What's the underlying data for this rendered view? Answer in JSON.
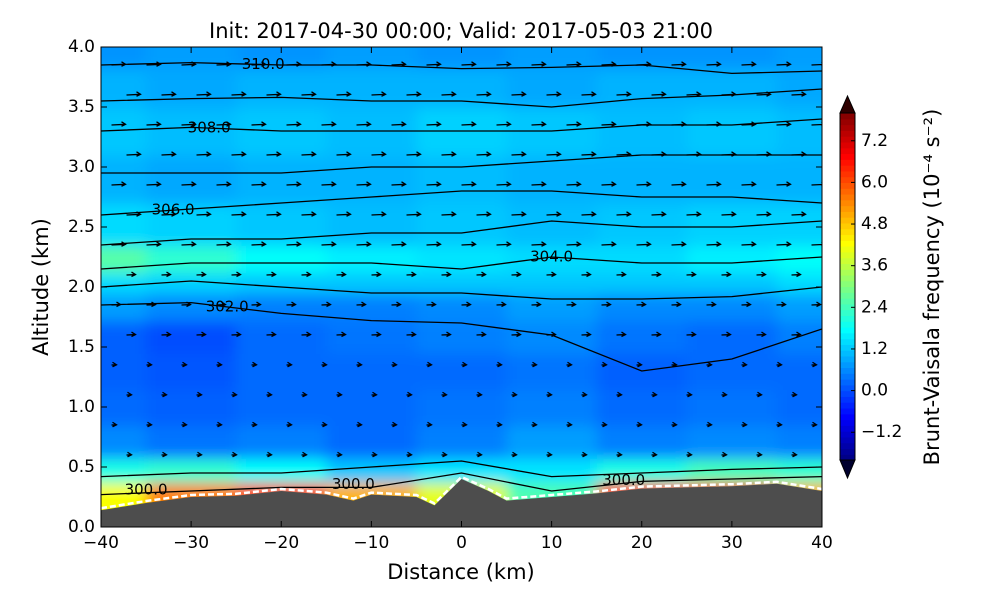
{
  "chart_data": {
    "type": "contourf",
    "title": "Init: 2017-04-30 00:00; Valid: 2017-05-03 21:00",
    "x_label": "Distance (km)",
    "y_label": "Altitude (km)",
    "colorbar_label": "Brunt-Vaisala frequency (10⁻⁴ s⁻²)",
    "colormap": "jet",
    "xlim": [
      -40,
      40
    ],
    "xticks": [
      {
        "value": -40,
        "label": "−40"
      },
      {
        "value": -30,
        "label": "−30"
      },
      {
        "value": -20,
        "label": "−20"
      },
      {
        "value": -10,
        "label": "−10"
      },
      0,
      10,
      20,
      30,
      40
    ],
    "ylim": [
      0,
      4
    ],
    "yticks": [
      {
        "value": 0,
        "label": "0.0"
      },
      0.5,
      {
        "value": 1,
        "label": "1.0"
      },
      1.5,
      {
        "value": 2,
        "label": "2.0"
      },
      2.5,
      {
        "value": 3,
        "label": "3.0"
      },
      3.5,
      {
        "value": 4,
        "label": "4.0"
      }
    ],
    "clim": [
      -2,
      8
    ],
    "cticks": [
      {
        "value": -1.2,
        "label": "−1.2"
      },
      {
        "value": 0,
        "label": "0.0"
      },
      1.2,
      2.4,
      3.6,
      4.8,
      {
        "value": 6,
        "label": "6.0"
      },
      7.2
    ],
    "field": {
      "x": [
        -40,
        -30,
        -20,
        -10,
        0,
        10,
        20,
        30,
        40
      ],
      "y": [
        0.3,
        0.45,
        0.7,
        1.0,
        1.3,
        1.6,
        1.85,
        2.05,
        2.2,
        2.5,
        2.9,
        3.3,
        3.7,
        3.95
      ],
      "values": [
        [
          4.2,
          5.5,
          6.0,
          5.0,
          4.0,
          2.5,
          6.2,
          6.5,
          5.0
        ],
        [
          2.0,
          2.2,
          1.8,
          1.2,
          1.5,
          1.5,
          2.0,
          2.4,
          2.2
        ],
        [
          0.6,
          0.4,
          0.5,
          0.3,
          0.5,
          0.8,
          0.5,
          0.6,
          0.5
        ],
        [
          0.3,
          0.2,
          0.3,
          0.3,
          0.4,
          0.5,
          0.3,
          0.4,
          0.3
        ],
        [
          0.2,
          0.1,
          0.3,
          0.3,
          0.3,
          0.4,
          0.2,
          0.3,
          0.3
        ],
        [
          0.2,
          0.0,
          0.3,
          0.4,
          0.5,
          0.6,
          0.4,
          0.3,
          0.5
        ],
        [
          0.8,
          0.6,
          0.5,
          0.5,
          0.6,
          0.8,
          0.6,
          0.6,
          0.8
        ],
        [
          1.4,
          1.3,
          1.2,
          1.2,
          1.2,
          1.2,
          1.2,
          1.2,
          1.4
        ],
        [
          2.6,
          2.2,
          1.8,
          1.6,
          1.5,
          1.4,
          1.4,
          1.6,
          1.8
        ],
        [
          1.4,
          1.3,
          1.2,
          1.1,
          1.2,
          1.1,
          1.2,
          1.3,
          1.3
        ],
        [
          1.0,
          0.9,
          1.0,
          1.0,
          1.1,
          1.0,
          1.0,
          1.0,
          1.0
        ],
        [
          1.2,
          1.1,
          1.2,
          1.1,
          1.3,
          1.2,
          1.1,
          1.2,
          1.1
        ],
        [
          1.0,
          0.9,
          1.0,
          1.0,
          1.0,
          0.9,
          1.0,
          1.0,
          0.9
        ],
        [
          0.7,
          0.8,
          0.7,
          0.8,
          0.7,
          0.8,
          0.7,
          0.7,
          0.8
        ]
      ]
    },
    "contour_x": [
      -40,
      -30,
      -20,
      -10,
      0,
      10,
      20,
      30,
      40
    ],
    "contours": [
      {
        "label": "300.0",
        "y": [
          0.27,
          0.3,
          0.33,
          0.33,
          0.45,
          0.3,
          0.38,
          0.4,
          0.42
        ]
      },
      {
        "y": [
          0.42,
          0.45,
          0.45,
          0.5,
          0.55,
          0.42,
          0.45,
          0.48,
          0.5
        ]
      },
      {
        "label": "302.0",
        "y": [
          1.85,
          1.87,
          1.78,
          1.72,
          1.7,
          1.6,
          1.3,
          1.4,
          1.65
        ]
      },
      {
        "y": [
          2.0,
          2.05,
          2.0,
          1.95,
          1.95,
          1.9,
          1.9,
          1.92,
          2.0
        ]
      },
      {
        "label": "304.0",
        "y": [
          2.15,
          2.2,
          2.2,
          2.2,
          2.15,
          2.25,
          2.2,
          2.2,
          2.25
        ]
      },
      {
        "y": [
          2.35,
          2.4,
          2.4,
          2.45,
          2.45,
          2.55,
          2.5,
          2.5,
          2.55
        ]
      },
      {
        "label": "306.0",
        "y": [
          2.6,
          2.65,
          2.7,
          2.75,
          2.8,
          2.8,
          2.75,
          2.75,
          2.7
        ]
      },
      {
        "y": [
          2.95,
          2.95,
          2.95,
          3.0,
          3.0,
          3.05,
          3.1,
          3.1,
          3.1
        ]
      },
      {
        "label": "308.0",
        "y": [
          3.3,
          3.33,
          3.3,
          3.3,
          3.3,
          3.3,
          3.35,
          3.35,
          3.4
        ]
      },
      {
        "y": [
          3.55,
          3.57,
          3.58,
          3.55,
          3.55,
          3.5,
          3.57,
          3.6,
          3.65
        ]
      },
      {
        "label": "310.0",
        "y": [
          3.85,
          3.87,
          3.85,
          3.85,
          3.82,
          3.83,
          3.85,
          3.78,
          3.8
        ]
      }
    ],
    "terrain_x": [
      -40,
      -35,
      -30,
      -25,
      -20,
      -15,
      -12,
      -10,
      -5,
      -3,
      0,
      3,
      5,
      10,
      15,
      20,
      25,
      30,
      35,
      40
    ],
    "terrain_height": [
      0.14,
      0.2,
      0.25,
      0.26,
      0.3,
      0.27,
      0.22,
      0.27,
      0.25,
      0.18,
      0.4,
      0.3,
      0.22,
      0.25,
      0.28,
      0.32,
      0.33,
      0.34,
      0.36,
      0.3
    ],
    "terrain_color": "#4d4d4d"
  }
}
